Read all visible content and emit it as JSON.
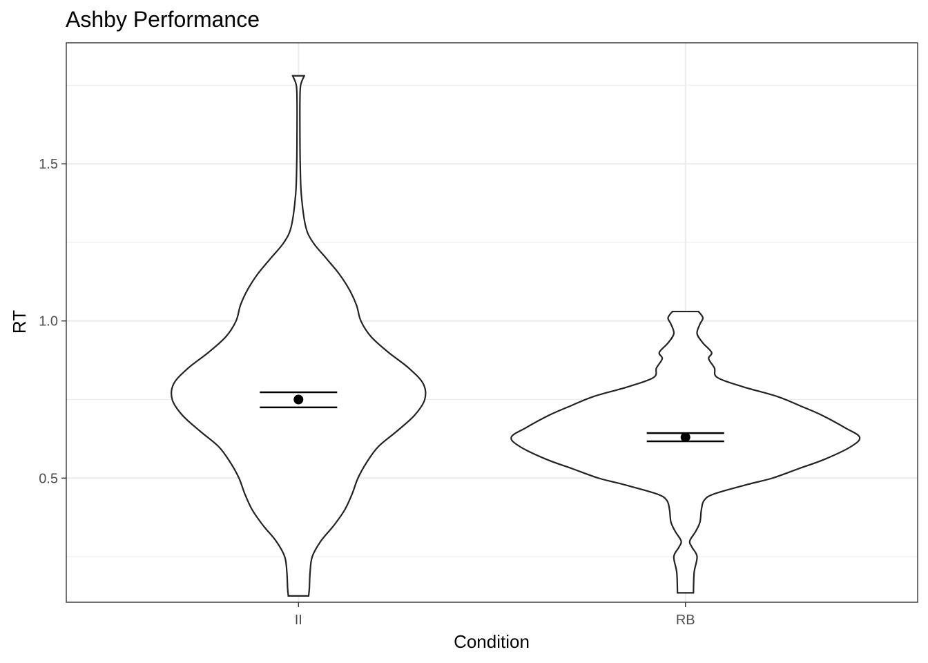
{
  "chart_data": {
    "type": "violin",
    "title": "Ashby Performance",
    "xlabel": "Condition",
    "ylabel": "RT",
    "categories": [
      "II",
      "RB"
    ],
    "ylim": [
      0.105,
      1.885
    ],
    "y_major_ticks": [
      0.5,
      1.0,
      1.5
    ],
    "y_tick_labels": [
      "0.5",
      "1.0",
      "1.5"
    ],
    "y_minor_ticks": [
      0.25,
      0.75,
      1.25,
      1.75
    ],
    "grid": true,
    "series": [
      {
        "category": "II",
        "mean": 0.75,
        "error_lower": 0.725,
        "error_upper": 0.773,
        "density_profile": [
          [
            0.125,
            0.07
          ],
          [
            0.15,
            0.075
          ],
          [
            0.2,
            0.08
          ],
          [
            0.25,
            0.095
          ],
          [
            0.3,
            0.155
          ],
          [
            0.35,
            0.245
          ],
          [
            0.4,
            0.32
          ],
          [
            0.45,
            0.37
          ],
          [
            0.5,
            0.41
          ],
          [
            0.55,
            0.47
          ],
          [
            0.6,
            0.55
          ],
          [
            0.65,
            0.68
          ],
          [
            0.7,
            0.8
          ],
          [
            0.75,
            0.87
          ],
          [
            0.8,
            0.86
          ],
          [
            0.85,
            0.76
          ],
          [
            0.9,
            0.62
          ],
          [
            0.95,
            0.5
          ],
          [
            1.0,
            0.43
          ],
          [
            1.05,
            0.4
          ],
          [
            1.1,
            0.35
          ],
          [
            1.15,
            0.28
          ],
          [
            1.2,
            0.19
          ],
          [
            1.25,
            0.1
          ],
          [
            1.3,
            0.05
          ],
          [
            1.4,
            0.02
          ],
          [
            1.5,
            0.012
          ],
          [
            1.6,
            0.01
          ],
          [
            1.7,
            0.01
          ],
          [
            1.75,
            0.015
          ],
          [
            1.78,
            0.04
          ]
        ]
      },
      {
        "category": "RB",
        "mean": 0.63,
        "error_lower": 0.617,
        "error_upper": 0.643,
        "density_profile": [
          [
            0.135,
            0.055
          ],
          [
            0.2,
            0.06
          ],
          [
            0.25,
            0.08
          ],
          [
            0.28,
            0.045
          ],
          [
            0.3,
            0.03
          ],
          [
            0.33,
            0.07
          ],
          [
            0.36,
            0.1
          ],
          [
            0.4,
            0.11
          ],
          [
            0.43,
            0.13
          ],
          [
            0.45,
            0.2
          ],
          [
            0.48,
            0.43
          ],
          [
            0.5,
            0.6
          ],
          [
            0.53,
            0.78
          ],
          [
            0.56,
            0.96
          ],
          [
            0.6,
            1.14
          ],
          [
            0.63,
            1.2
          ],
          [
            0.66,
            1.1
          ],
          [
            0.7,
            0.94
          ],
          [
            0.73,
            0.79
          ],
          [
            0.76,
            0.63
          ],
          [
            0.79,
            0.4
          ],
          [
            0.82,
            0.22
          ],
          [
            0.85,
            0.2
          ],
          [
            0.88,
            0.16
          ],
          [
            0.9,
            0.18
          ],
          [
            0.93,
            0.12
          ],
          [
            0.96,
            0.08
          ],
          [
            0.99,
            0.1
          ],
          [
            1.01,
            0.12
          ],
          [
            1.03,
            0.09
          ]
        ]
      }
    ]
  }
}
